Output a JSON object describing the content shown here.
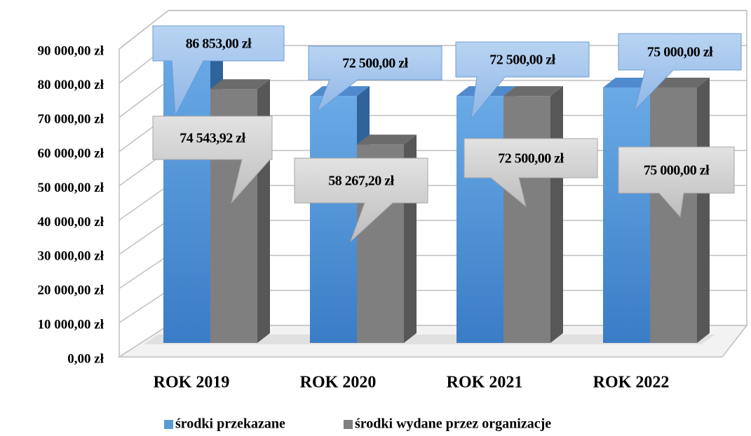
{
  "chart_data": {
    "type": "bar3d",
    "categories": [
      "ROK 2019",
      "ROK 2020",
      "ROK 2021",
      "ROK 2022"
    ],
    "series": [
      {
        "name": "środki przekazane",
        "color": "#5b9bd5",
        "values": [
          86853,
          72500,
          72500,
          75000
        ],
        "value_labels": [
          "86 853,00 zł",
          "72 500,00 zł",
          "72 500,00 zł",
          "75 000,00 zł"
        ]
      },
      {
        "name": "środki wydane przez organizacje",
        "color": "#7f7f7f",
        "values": [
          74543.92,
          58267.2,
          72500,
          75000
        ],
        "value_labels": [
          "74 543,92 zł",
          "58 267,20 zł",
          "72 500,00 zł",
          "75 000,00 zł"
        ]
      }
    ],
    "ylim": [
      0,
      90000
    ],
    "yticks": [
      {
        "value": 0,
        "label": "0,00 zł"
      },
      {
        "value": 10000,
        "label": "10 000,00 zł"
      },
      {
        "value": 20000,
        "label": "20 000,00 zł"
      },
      {
        "value": 30000,
        "label": "30 000,00 zł"
      },
      {
        "value": 40000,
        "label": "40 000,00 zł"
      },
      {
        "value": 50000,
        "label": "50 000,00 zł"
      },
      {
        "value": 60000,
        "label": "60 000,00 zł"
      },
      {
        "value": 70000,
        "label": "70 000,00 zł"
      },
      {
        "value": 80000,
        "label": "80 000,00 zł"
      },
      {
        "value": 90000,
        "label": "90 000,00 zł"
      }
    ],
    "grid": true,
    "legend": "bottom"
  }
}
